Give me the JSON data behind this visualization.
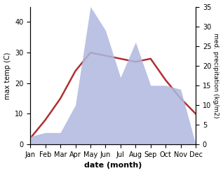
{
  "months": [
    "Jan",
    "Feb",
    "Mar",
    "Apr",
    "May",
    "Jun",
    "Jul",
    "Aug",
    "Sep",
    "Oct",
    "Nov",
    "Dec"
  ],
  "temperature": [
    2,
    8,
    15,
    24,
    30,
    29,
    28,
    27,
    28,
    21,
    15,
    10
  ],
  "precipitation": [
    2,
    3,
    3,
    10,
    35,
    29,
    17,
    26,
    15,
    15,
    14,
    0
  ],
  "temp_color": "#b03030",
  "precip_fill_color": "#b0b8e0",
  "title": "",
  "xlabel": "date (month)",
  "ylabel_left": "max temp (C)",
  "ylabel_right": "med. precipitation (kg/m2)",
  "ylim_left": [
    0,
    45
  ],
  "ylim_right": [
    0,
    35
  ],
  "yticks_left": [
    0,
    10,
    20,
    30,
    40
  ],
  "yticks_right": [
    0,
    5,
    10,
    15,
    20,
    25,
    30,
    35
  ],
  "background_color": "#ffffff"
}
